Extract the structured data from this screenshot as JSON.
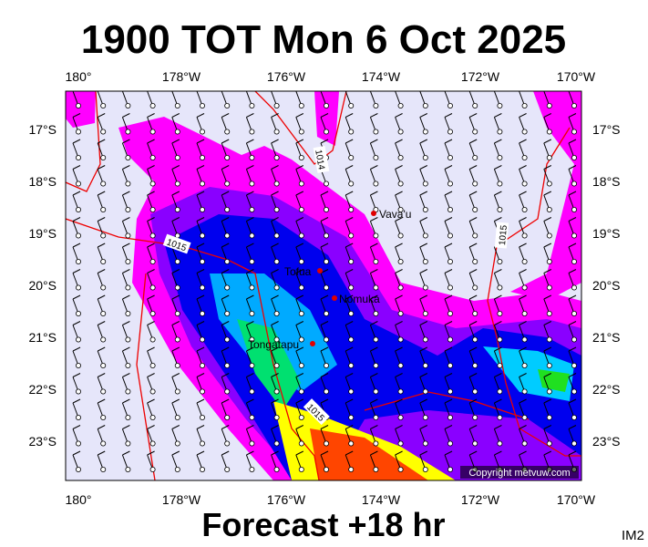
{
  "header": {
    "title": "1900 TOT Mon 6 Oct 2025"
  },
  "axes": {
    "longitude": [
      "180°",
      "178°W",
      "176°W",
      "174°W",
      "172°W",
      "170°W"
    ],
    "latitude": [
      "17°S",
      "18°S",
      "19°S",
      "20°S",
      "21°S",
      "22°S",
      "23°S"
    ]
  },
  "places": [
    "Vava'u",
    "Tofua",
    "Nomuka",
    "Tongatapu"
  ],
  "contours": [
    "1014",
    "1015",
    "1015",
    "1015"
  ],
  "copyright": "Copyright metvuw.com",
  "footer": {
    "forecast": "Forecast +18 hr",
    "code": "IM2"
  }
}
